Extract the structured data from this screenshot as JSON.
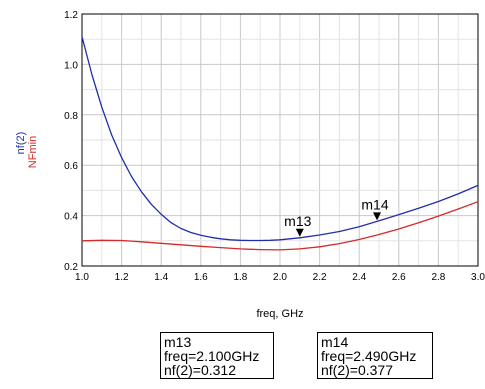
{
  "chart_data": {
    "type": "line",
    "xlabel": "freq, GHz",
    "ylabel_series": [
      {
        "text": "nf(2)",
        "color": "#1f2fa8"
      },
      {
        "text": "NFmin",
        "color": "#d42a2a"
      }
    ],
    "xlim": [
      1.0,
      3.0
    ],
    "ylim": [
      0.2,
      1.2
    ],
    "x_ticks": [
      "1.0",
      "1.2",
      "1.4",
      "1.6",
      "1.8",
      "2.0",
      "2.2",
      "2.4",
      "2.6",
      "2.8",
      "3.0"
    ],
    "y_ticks": [
      "0.2",
      "0.4",
      "0.6",
      "0.8",
      "1.0",
      "1.2"
    ],
    "grid": true,
    "series": [
      {
        "name": "nf(2)",
        "color": "#1f2fa8",
        "x": [
          1.0,
          1.05,
          1.1,
          1.15,
          1.2,
          1.25,
          1.3,
          1.35,
          1.4,
          1.45,
          1.5,
          1.55,
          1.6,
          1.65,
          1.7,
          1.75,
          1.8,
          1.85,
          1.9,
          1.95,
          2.0,
          2.1,
          2.2,
          2.3,
          2.4,
          2.49,
          2.6,
          2.7,
          2.8,
          2.9,
          3.0
        ],
        "y": [
          1.11,
          0.96,
          0.83,
          0.72,
          0.63,
          0.555,
          0.495,
          0.445,
          0.405,
          0.372,
          0.349,
          0.333,
          0.322,
          0.314,
          0.308,
          0.304,
          0.302,
          0.301,
          0.301,
          0.302,
          0.304,
          0.312,
          0.323,
          0.337,
          0.356,
          0.377,
          0.404,
          0.429,
          0.456,
          0.486,
          0.52
        ]
      },
      {
        "name": "NFmin",
        "color": "#d42a2a",
        "x": [
          1.0,
          1.1,
          1.2,
          1.3,
          1.4,
          1.5,
          1.6,
          1.7,
          1.8,
          1.9,
          2.0,
          2.1,
          2.2,
          2.3,
          2.4,
          2.5,
          2.6,
          2.7,
          2.8,
          2.9,
          3.0
        ],
        "y": [
          0.3,
          0.302,
          0.301,
          0.296,
          0.29,
          0.284,
          0.278,
          0.273,
          0.268,
          0.265,
          0.264,
          0.268,
          0.276,
          0.289,
          0.305,
          0.325,
          0.347,
          0.372,
          0.398,
          0.426,
          0.455
        ]
      }
    ],
    "markers": [
      {
        "name": "m13",
        "x": 2.1,
        "y": 0.312,
        "lines": [
          "m13",
          "freq=2.100GHz",
          "nf(2)=0.312"
        ]
      },
      {
        "name": "m14",
        "x": 2.49,
        "y": 0.377,
        "lines": [
          "m14",
          "freq=2.490GHz",
          "nf(2)=0.377"
        ]
      }
    ]
  }
}
